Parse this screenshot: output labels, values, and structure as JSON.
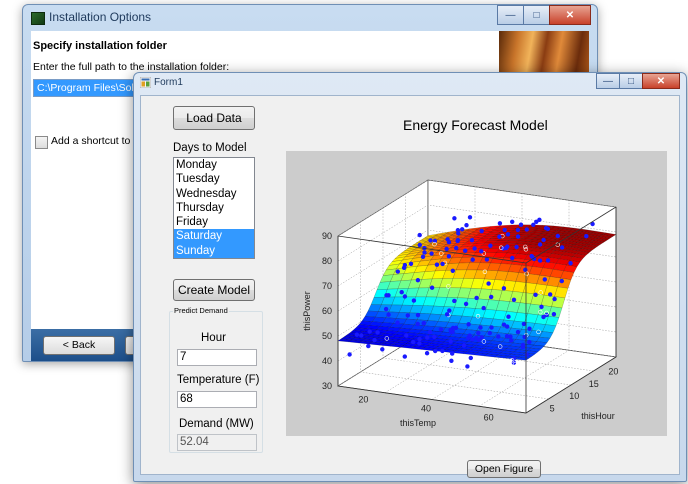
{
  "installer": {
    "title": "Installation Options",
    "heading": "Specify installation folder",
    "prompt": "Enter the full path to the installation folder:",
    "path_value": "C:\\Program Files\\Solar",
    "shortcut_label": "Add a shortcut to th",
    "back_label": "< Back",
    "icon": "installer-app-icon"
  },
  "form": {
    "title": "Form1",
    "load_button": "Load Data",
    "days_label": "Days to Model",
    "days": [
      "Monday",
      "Tuesday",
      "Wednesday",
      "Thursday",
      "Friday",
      "Saturday",
      "Sunday"
    ],
    "selected_days": [
      "Saturday",
      "Sunday"
    ],
    "create_button": "Create Model",
    "predict_group_label": "Predict Demand",
    "hour_label": "Hour",
    "hour_value": "7",
    "temp_label": "Temperature (F)",
    "temp_value": "68",
    "demand_label": "Demand (MW)",
    "demand_value": "52.04",
    "open_button": "Open Figure",
    "chart_title": "Energy Forecast Model"
  },
  "chart_data": {
    "type": "surface3d-scatter",
    "title": "Energy Forecast Model",
    "xlabel": "thisTemp",
    "ylabel": "thisHour",
    "zlabel": "thisPower",
    "x_ticks": [
      60,
      40,
      20
    ],
    "y_ticks": [
      5,
      10,
      15,
      20
    ],
    "z_ticks": [
      30,
      40,
      50,
      60,
      70,
      80,
      90
    ],
    "zlim": [
      30,
      90
    ],
    "grid": true,
    "colormap": "jet",
    "scatter_color": "#1a1aff"
  },
  "colors": {
    "selection": "#3399ff",
    "plot_background": "#cccccc",
    "window_frame": "#c7d8ec"
  }
}
